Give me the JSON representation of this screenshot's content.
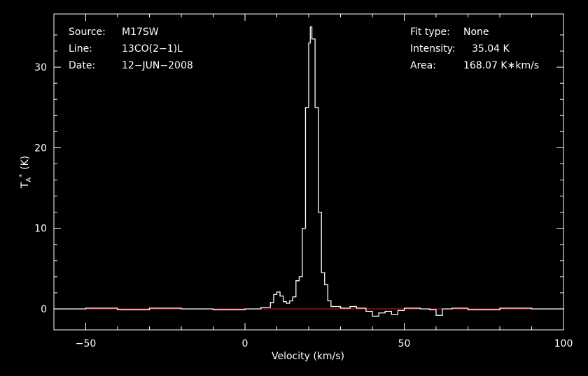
{
  "chart_data": {
    "type": "line",
    "title": "",
    "xlabel": "Velocity (km/s)",
    "ylabel": {
      "main": "T",
      "sub": "A",
      "sup": "*",
      "unit": "(K)"
    },
    "xlim": [
      -60,
      100
    ],
    "ylim": [
      -2.6,
      36.6
    ],
    "x_ticks": [
      -50,
      0,
      50,
      100
    ],
    "y_ticks": [
      0,
      10,
      20,
      30
    ],
    "x_tick_labels": [
      "−50",
      "0",
      "50",
      "100"
    ],
    "y_tick_labels": [
      "0",
      "10",
      "20",
      "30"
    ],
    "grid": false,
    "info_left": [
      {
        "key": "Source:",
        "value": "M17SW"
      },
      {
        "key": "Line:",
        "value": "13CO(2−1)L"
      },
      {
        "key": "Date:",
        "value": "12−JUN−2008"
      }
    ],
    "info_right": [
      {
        "key": "Fit type:",
        "value": "None"
      },
      {
        "key": "Intensity:",
        "value": "35.04 K"
      },
      {
        "key": "Area:",
        "value": "168.07 K∗km/s"
      }
    ],
    "baseline": {
      "y": 0,
      "color": "#cc2222"
    },
    "series": [
      {
        "color": "#ffffff",
        "x": [
          -60,
          -50,
          -40,
          -30,
          -20,
          -10,
          0,
          5,
          8,
          9,
          10,
          11,
          12,
          13,
          14,
          15,
          16,
          17,
          18,
          19,
          20,
          20.5,
          21,
          22,
          23,
          24,
          25,
          26,
          27,
          30,
          33,
          35,
          38,
          40,
          42,
          44,
          46,
          48,
          50,
          55,
          58,
          60,
          62,
          65,
          70,
          80,
          90,
          100
        ],
        "y": [
          0,
          0.1,
          -0.1,
          0.1,
          0,
          -0.1,
          0,
          0.2,
          0.8,
          1.8,
          2.1,
          1.6,
          0.9,
          0.7,
          1.0,
          1.5,
          3.5,
          4.0,
          10.0,
          25.0,
          33.0,
          35.0,
          33.5,
          25.0,
          12.0,
          4.5,
          3.0,
          1.0,
          0.3,
          0.1,
          0.3,
          0.1,
          -0.3,
          -0.9,
          -0.5,
          -0.3,
          -0.7,
          -0.2,
          0.1,
          0,
          -0.1,
          -0.8,
          0,
          0.1,
          -0.1,
          0.1,
          0,
          0.1
        ]
      }
    ]
  }
}
